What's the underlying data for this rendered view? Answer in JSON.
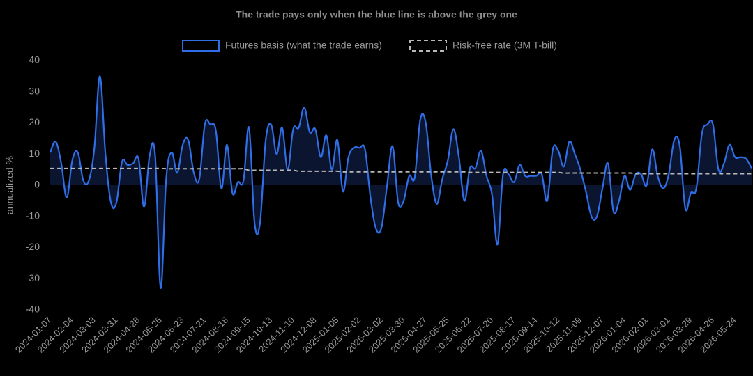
{
  "chart_data": {
    "type": "line",
    "title": "The trade pays only when the blue line is above the grey one",
    "y_label": "annualized %",
    "ylim": [
      -40,
      40
    ],
    "yticks": [
      -40,
      -30,
      -20,
      -10,
      0,
      10,
      20,
      30,
      40
    ],
    "legend": "top",
    "categories": [
      "2024-01-07",
      null,
      null,
      null,
      "2024-02-04",
      null,
      null,
      null,
      "2024-03-03",
      null,
      null,
      null,
      "2024-03-31",
      null,
      null,
      null,
      "2024-04-28",
      null,
      null,
      null,
      "2024-05-26",
      null,
      null,
      null,
      "2024-06-23",
      null,
      null,
      null,
      "2024-07-21",
      null,
      null,
      null,
      "2024-08-18",
      null,
      null,
      null,
      "2024-09-15",
      null,
      null,
      null,
      "2024-10-13",
      null,
      null,
      null,
      "2024-11-10",
      null,
      null,
      null,
      "2024-12-08",
      null,
      null,
      null,
      "2025-01-05",
      null,
      null,
      null,
      "2025-02-02",
      null,
      null,
      null,
      "2025-03-02",
      null,
      null,
      null,
      "2025-03-30",
      null,
      null,
      null,
      "2025-04-27",
      null,
      null,
      null,
      "2025-05-25",
      null,
      null,
      null,
      "2025-06-22",
      null,
      null,
      null,
      "2025-07-20",
      null,
      null,
      null,
      "2025-08-17",
      null,
      null,
      null,
      "2025-09-14",
      null,
      null,
      null,
      "2025-10-12",
      null,
      null,
      null,
      "2025-11-09",
      null,
      null,
      null,
      "2025-12-07",
      null,
      null,
      null,
      "2026-01-04",
      null,
      null,
      null,
      "2026-02-01",
      null,
      null,
      null,
      "2026-03-01",
      null,
      null,
      null,
      "2026-03-29",
      null,
      null,
      null,
      "2026-04-26",
      null,
      null,
      null,
      "2026-05-24",
      null,
      null,
      null
    ],
    "series": [
      {
        "name": "Futures basis (what the trade earns)",
        "color": "#2f6ee6",
        "fill": "#0b1530",
        "dash": false,
        "values": [
          10.5,
          14,
          7,
          -4,
          8,
          10.5,
          1.5,
          1.5,
          12,
          35,
          10,
          -5.5,
          -5.5,
          7.5,
          6.5,
          7,
          8.5,
          -7,
          9.5,
          9.5,
          -33,
          2,
          10.5,
          4,
          13,
          14.5,
          4,
          2,
          19.5,
          19.5,
          17.5,
          -1,
          13,
          -2.5,
          1,
          1.5,
          18.5,
          -12,
          -12,
          14,
          19.5,
          10,
          18.5,
          5,
          18,
          18.5,
          25,
          17,
          18,
          9,
          16,
          5,
          14.5,
          -2,
          9,
          12,
          12,
          11.5,
          -4,
          -14,
          -13.5,
          0,
          12.5,
          -5.5,
          -5,
          3,
          2.5,
          21,
          20,
          3,
          -6,
          2,
          8,
          18,
          9,
          -5,
          5.5,
          5.5,
          11,
          3,
          -3,
          -19,
          3.5,
          3.5,
          1,
          6.5,
          3,
          3,
          3,
          3.5,
          -5,
          11.5,
          11,
          6,
          14,
          10,
          5,
          -2,
          -10,
          -10,
          -1,
          7,
          -8.5,
          -5,
          3,
          -1.5,
          3.5,
          3.5,
          0,
          11.5,
          3,
          -1,
          3.5,
          14.5,
          12.5,
          -7.5,
          -2.5,
          -1,
          16.5,
          19.5,
          19.5,
          5,
          7,
          13,
          9,
          9,
          8.5,
          5.5
        ]
      },
      {
        "name": "Risk-free rate (3M T-bill)",
        "color": "#b8b8b8",
        "dash": true,
        "values": [
          5.4,
          5.4,
          5.4,
          5.4,
          5.4,
          5.4,
          5.4,
          5.4,
          5.4,
          5.4,
          5.4,
          5.4,
          5.4,
          5.4,
          5.4,
          5.4,
          5.4,
          5.4,
          5.4,
          5.4,
          5.4,
          5.3,
          5.3,
          5.3,
          5.3,
          5.3,
          5.3,
          5.3,
          5.3,
          5.3,
          5.3,
          5.3,
          5.3,
          5.3,
          5.3,
          5.3,
          4.8,
          4.8,
          4.8,
          4.8,
          4.8,
          4.8,
          4.8,
          4.8,
          4.8,
          4.5,
          4.5,
          4.5,
          4.5,
          4.5,
          4.5,
          4.5,
          4.5,
          4.3,
          4.3,
          4.3,
          4.3,
          4.3,
          4.3,
          4.3,
          4.3,
          4.3,
          4.3,
          4.3,
          4.3,
          4.3,
          4.3,
          4.3,
          4.3,
          4.3,
          4.3,
          4.3,
          4.3,
          4.3,
          4.3,
          4.3,
          4.1,
          4.1,
          4.1,
          4.1,
          4.1,
          4.1,
          4.1,
          4.1,
          4.1,
          4.1,
          4.1,
          4.1,
          4.1,
          4.1,
          4.1,
          4.1,
          4.1,
          3.9,
          3.9,
          3.9,
          3.9,
          3.9,
          3.9,
          3.9,
          3.9,
          3.9,
          3.9,
          3.9,
          3.9,
          3.9,
          3.7,
          3.7,
          3.7,
          3.7,
          3.7,
          3.7,
          3.7,
          3.7,
          3.7,
          3.7,
          3.7,
          3.7,
          3.7,
          3.7,
          3.7,
          3.7,
          3.7,
          3.7,
          3.7,
          3.7,
          3.7,
          3.7
        ]
      }
    ]
  }
}
